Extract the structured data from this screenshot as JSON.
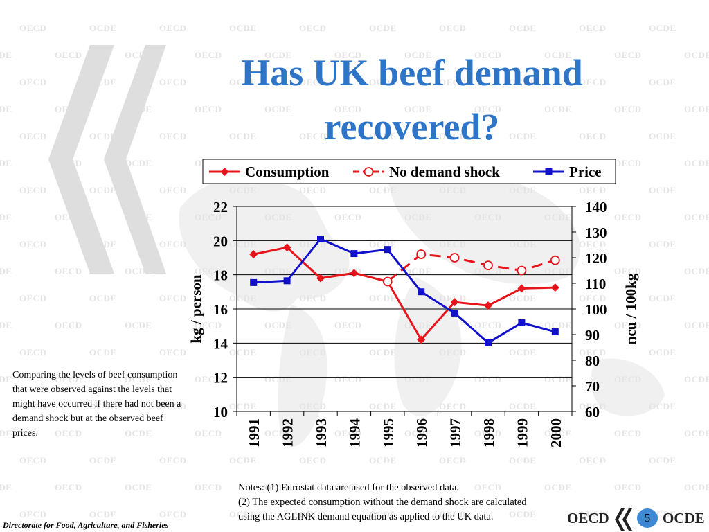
{
  "slide": {
    "title_line1": "Has UK beef demand",
    "title_line2": "recovered?",
    "side_note": "Comparing the levels of beef consumption that were observed against the levels that might have occurred if there had not been a demand shock but at the observed beef prices.",
    "notes": [
      "Notes: (1) Eurostat data are used for the observed data.",
      "(2) The expected consumption without the demand shock are calculated",
      "using the AGLINK demand equation as applied to the UK data."
    ],
    "footer": {
      "directorate": "Directorate for Food, Agriculture, and Fisheries",
      "oecd": "OECD",
      "ocde": "OCDE",
      "page_number": "5"
    },
    "watermark": [
      "OECD",
      "OCDE"
    ]
  },
  "chart_data": {
    "type": "line",
    "title": "",
    "categories": [
      "1991",
      "1992",
      "1993",
      "1994",
      "1995",
      "1996",
      "1997",
      "1998",
      "1999",
      "2000"
    ],
    "ylabel": "kg / person",
    "y2label": "ncu / 100kg",
    "ylim": [
      10,
      22
    ],
    "y2lim": [
      60,
      140
    ],
    "yticks": [
      10,
      12,
      14,
      16,
      18,
      20,
      22
    ],
    "y2ticks": [
      60,
      70,
      80,
      90,
      100,
      110,
      120,
      130,
      140
    ],
    "grid": true,
    "legend_position": "top",
    "series": [
      {
        "name": "Consumption",
        "axis": "left",
        "color": "#e8141c",
        "marker": "diamond",
        "dashed": false,
        "values": [
          19.2,
          19.6,
          17.8,
          18.1,
          17.6,
          14.2,
          16.4,
          16.2,
          17.2,
          17.25
        ]
      },
      {
        "name": "No demand shock",
        "axis": "left",
        "color": "#e8141c",
        "marker": "circle",
        "dashed": true,
        "values": [
          null,
          null,
          null,
          null,
          17.6,
          19.2,
          19.0,
          18.55,
          18.25,
          18.85
        ]
      },
      {
        "name": "Price",
        "axis": "right",
        "color": "#1111cc",
        "marker": "square",
        "dashed": false,
        "values": [
          110.3,
          111.0,
          127.3,
          121.6,
          123.2,
          106.7,
          98.4,
          86.8,
          94.6,
          91.1
        ]
      }
    ]
  }
}
